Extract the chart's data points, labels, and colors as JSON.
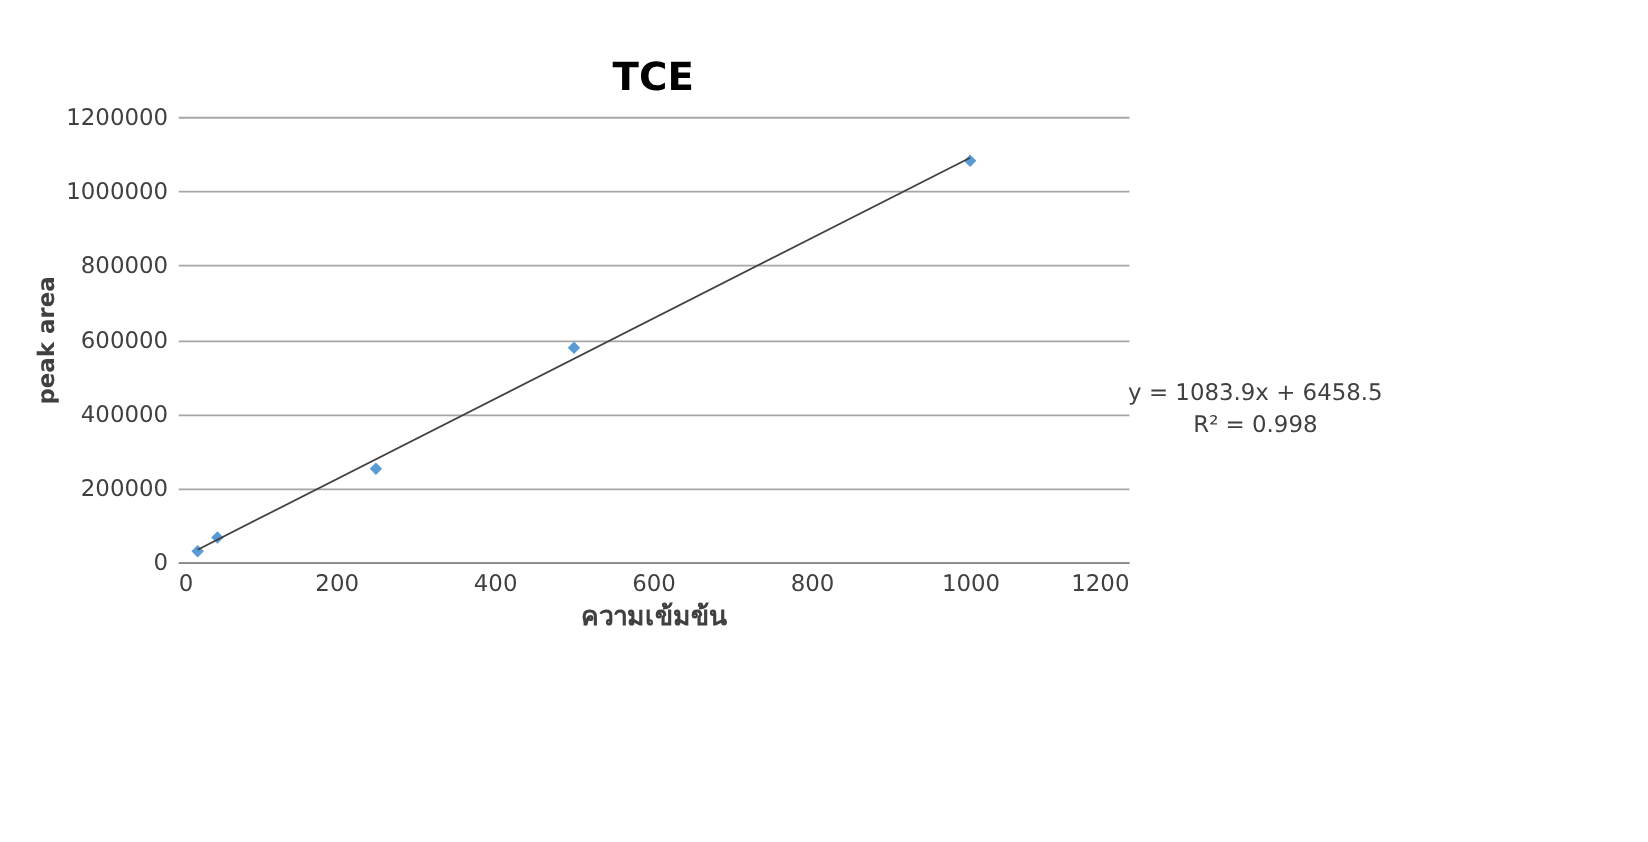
{
  "chart_data": {
    "type": "scatter",
    "title": "TCE",
    "xlabel": "ความเข้มข้น",
    "ylabel": "peak area",
    "x": [
      25,
      50,
      250,
      500,
      1000
    ],
    "series": [
      {
        "color": "#5b9bd5",
        "marker": "diamond",
        "values": [
          30000,
          67000,
          252000,
          578000,
          1082000
        ]
      },
      {
        "type": "line",
        "color": "#404040",
        "line_style": "solid",
        "x": [
          25,
          1000
        ],
        "values": [
          34000,
          1090000
        ]
      }
    ],
    "annotations": [
      "y = 1083.9x + 6458.5",
      "R² = 0.998"
    ],
    "xlim": [
      0,
      1200
    ],
    "xticks": [
      0,
      200,
      400,
      600,
      800,
      1000,
      1200
    ],
    "ylim": [
      0,
      1200000
    ],
    "yticks": [
      0,
      200000,
      400000,
      600000,
      800000,
      1000000,
      1200000
    ],
    "grid": "y"
  }
}
